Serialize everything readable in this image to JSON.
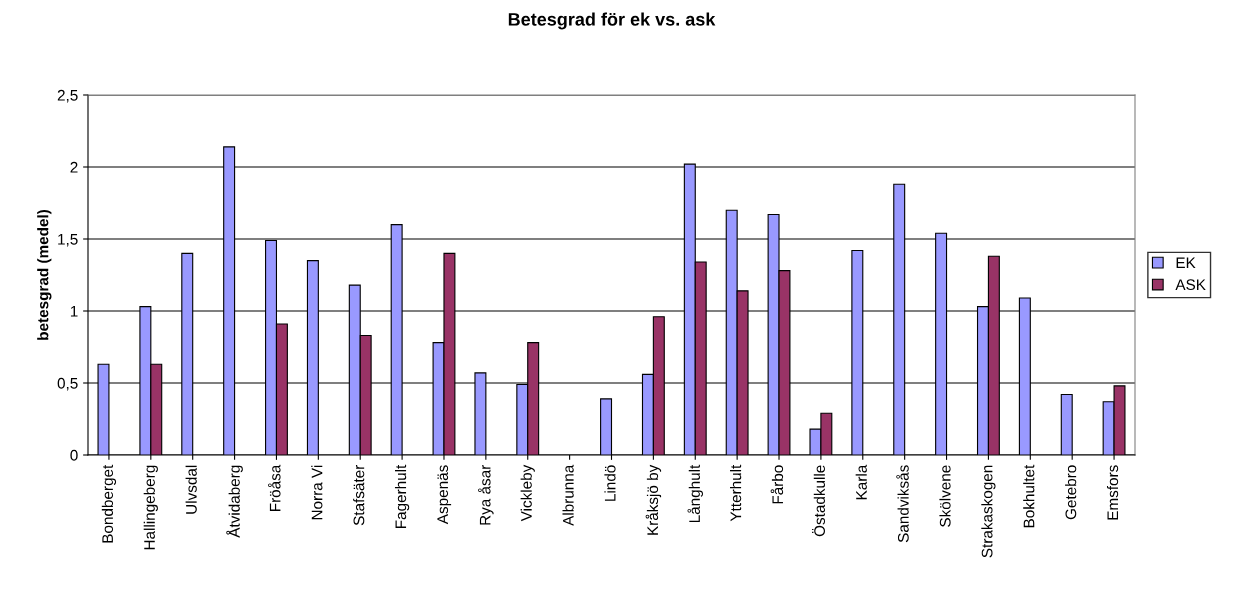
{
  "chart_data": {
    "type": "bar",
    "title": "Betesgrad för ek vs. ask",
    "ylabel": "betesgrad (medel)",
    "categories": [
      "Bondberget",
      "Hallingeberg",
      "Ulvsdal",
      "Åtvidaberg",
      "Fröåsa",
      "Norra Vi",
      "Stafsäter",
      "Fagerhult",
      "Aspenäs",
      "Rya åsar",
      "Vickleby",
      "Albrunna",
      "Lindö",
      "Kråksjö by",
      "Långhult",
      "Ytterhult",
      "Fårbo",
      "Östadkulle",
      "Karla",
      "Sandviksås",
      "Skölvene",
      "Strakaskogen",
      "Bokhultet",
      "Getebro",
      "Emsfors"
    ],
    "series": [
      {
        "name": "EK",
        "color": "#9999ff",
        "values": [
          0.63,
          1.03,
          1.4,
          2.14,
          1.49,
          1.35,
          1.18,
          1.6,
          0.78,
          0.57,
          0.49,
          null,
          0.39,
          0.56,
          2.02,
          1.7,
          1.67,
          0.18,
          1.42,
          1.88,
          1.54,
          1.03,
          1.09,
          0.42,
          0.37
        ]
      },
      {
        "name": "ASK",
        "color": "#993366",
        "values": [
          null,
          0.63,
          null,
          null,
          0.91,
          null,
          0.83,
          null,
          1.4,
          null,
          0.78,
          null,
          null,
          0.96,
          1.34,
          1.14,
          1.28,
          0.29,
          null,
          null,
          null,
          1.38,
          null,
          null,
          0.48
        ]
      }
    ],
    "ylim": [
      0,
      2.5
    ],
    "yticks": [
      0,
      {
        "value": 0.5,
        "label": "0,5"
      },
      1,
      {
        "value": 1.5,
        "label": "1,5"
      },
      2,
      {
        "value": 2.5,
        "label": "2,5"
      }
    ],
    "grid": "y",
    "legend": "right"
  }
}
